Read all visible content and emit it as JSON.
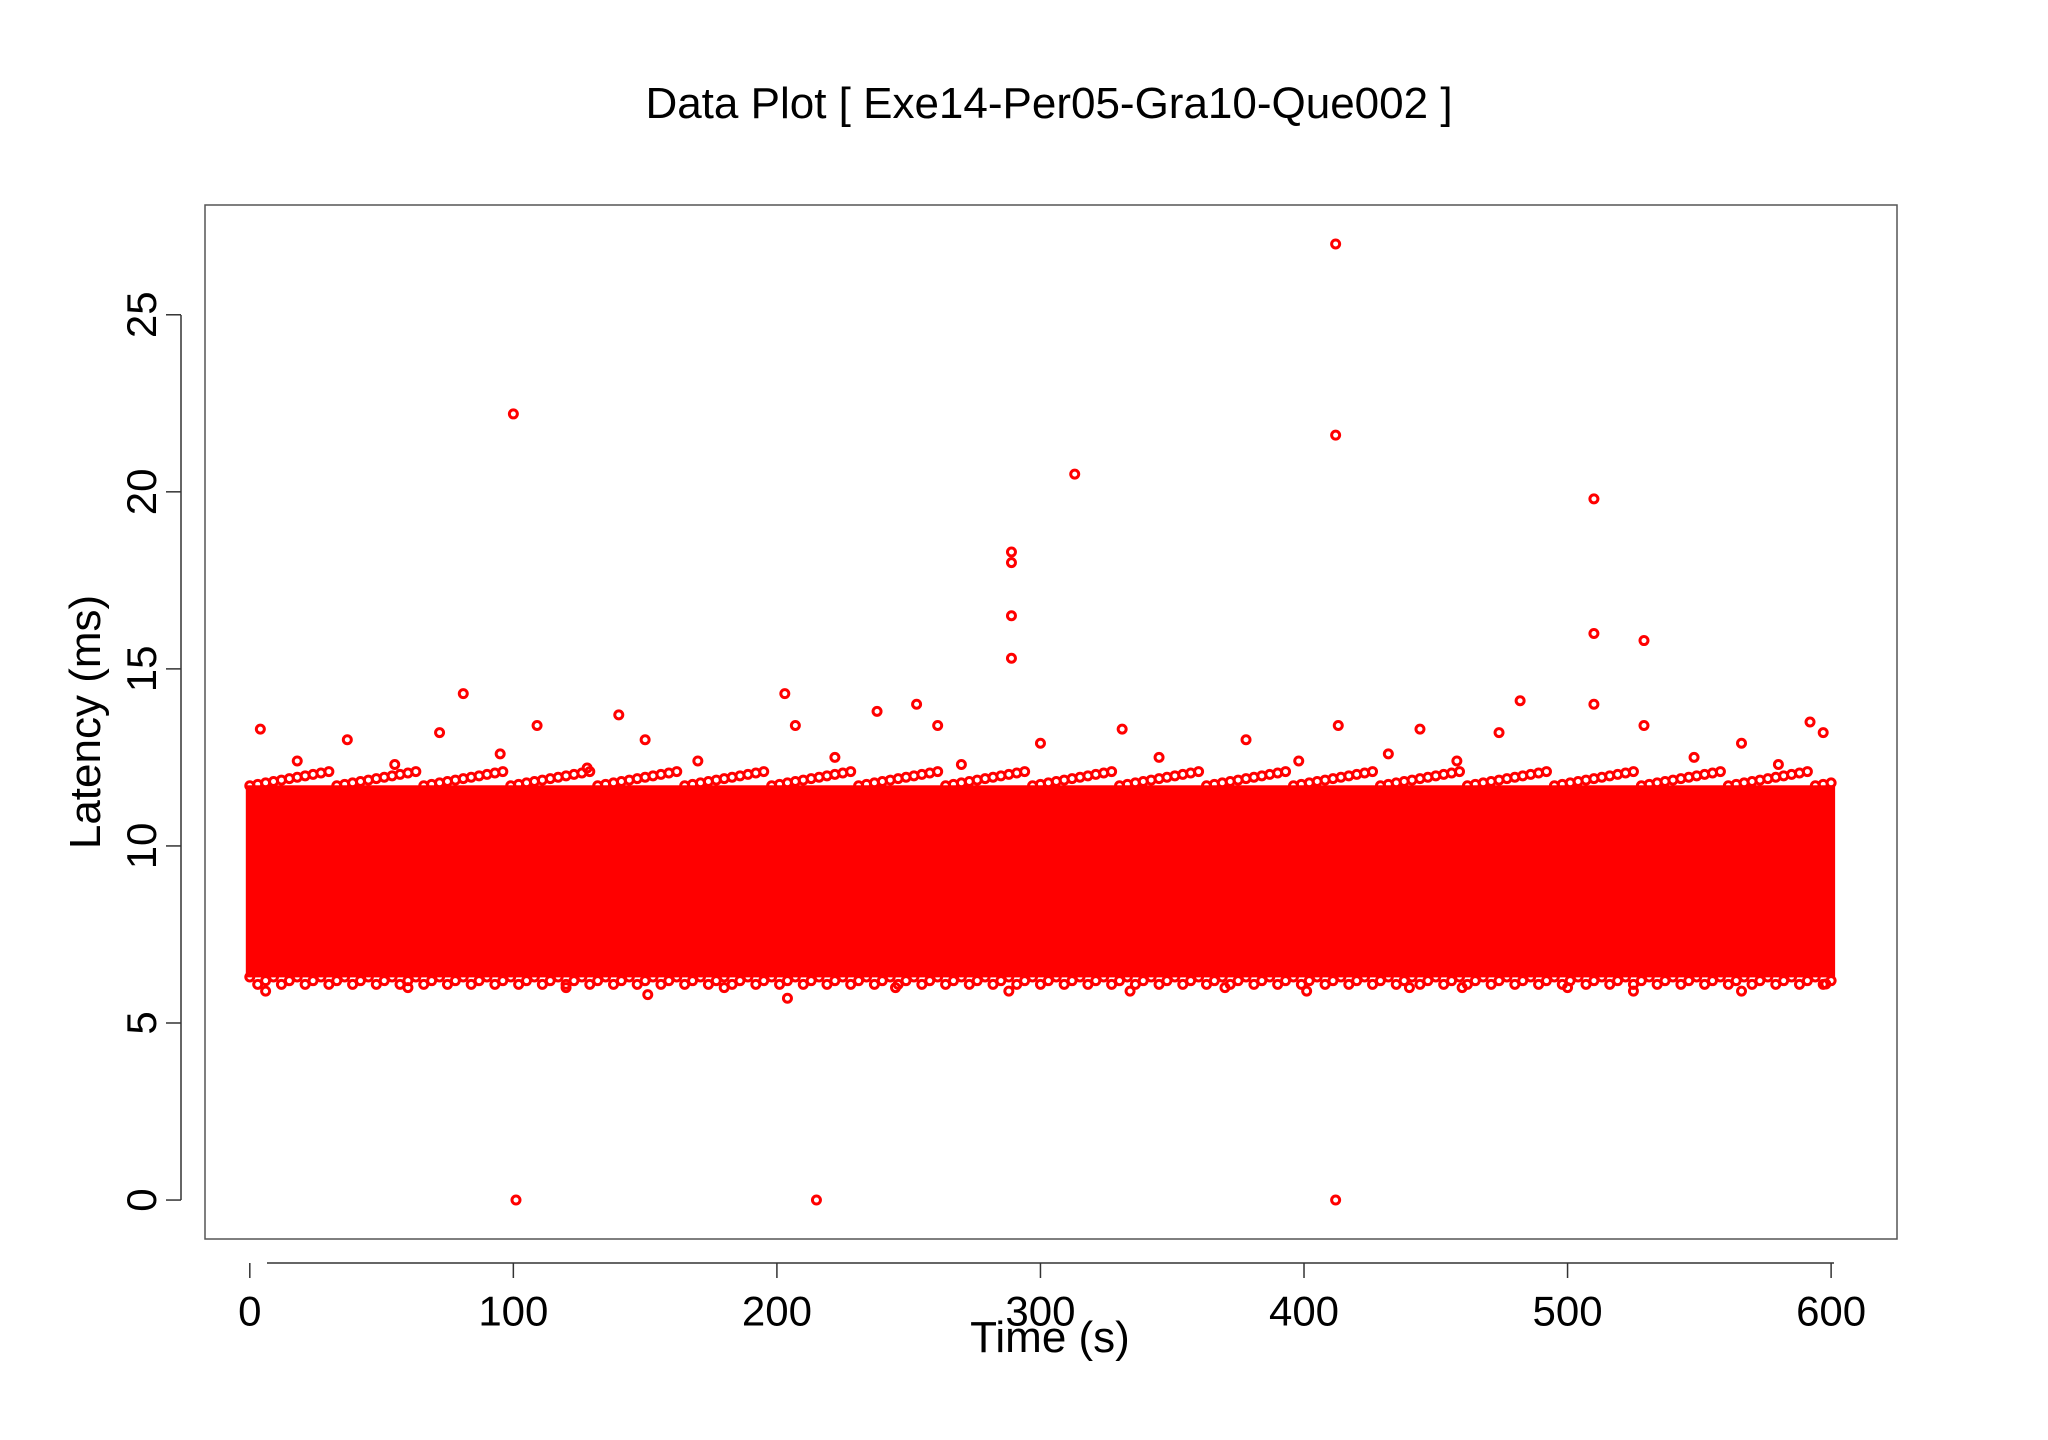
{
  "chart_data": {
    "type": "scatter",
    "title": "Data Plot [ Exe14-Per05-Gra10-Que002 ]",
    "xlabel": "Time (s)",
    "ylabel": "Latency (ms)",
    "xlim": [
      -17,
      625
    ],
    "ylim": [
      -1.1,
      28.1
    ],
    "xticks": [
      0,
      100,
      200,
      300,
      400,
      500,
      600
    ],
    "yticks": [
      0,
      5,
      10,
      15,
      20,
      25
    ],
    "grid": false,
    "legend": "none",
    "color": "#ff0000",
    "dense_band": {
      "x_range": [
        0,
        600
      ],
      "y_range": [
        6.4,
        11.6
      ]
    },
    "points": [
      {
        "x": 100,
        "y": 22.2
      },
      {
        "x": 412,
        "y": 27.0
      },
      {
        "x": 412,
        "y": 21.6
      },
      {
        "x": 313,
        "y": 20.5
      },
      {
        "x": 510,
        "y": 19.8
      },
      {
        "x": 289,
        "y": 18.3
      },
      {
        "x": 289,
        "y": 18.0
      },
      {
        "x": 289,
        "y": 16.5
      },
      {
        "x": 289,
        "y": 15.3
      },
      {
        "x": 510,
        "y": 16.0
      },
      {
        "x": 529,
        "y": 15.8
      },
      {
        "x": 81,
        "y": 14.3
      },
      {
        "x": 203,
        "y": 14.3
      },
      {
        "x": 140,
        "y": 13.7
      },
      {
        "x": 238,
        "y": 13.8
      },
      {
        "x": 253,
        "y": 14.0
      },
      {
        "x": 482,
        "y": 14.1
      },
      {
        "x": 510,
        "y": 14.0
      },
      {
        "x": 592,
        "y": 13.5
      },
      {
        "x": 4,
        "y": 13.3
      },
      {
        "x": 72,
        "y": 13.2
      },
      {
        "x": 109,
        "y": 13.4
      },
      {
        "x": 207,
        "y": 13.4
      },
      {
        "x": 261,
        "y": 13.4
      },
      {
        "x": 331,
        "y": 13.3
      },
      {
        "x": 413,
        "y": 13.4
      },
      {
        "x": 444,
        "y": 13.3
      },
      {
        "x": 529,
        "y": 13.4
      },
      {
        "x": 597,
        "y": 13.2
      },
      {
        "x": 37,
        "y": 13.0
      },
      {
        "x": 150,
        "y": 13.0
      },
      {
        "x": 300,
        "y": 12.9
      },
      {
        "x": 378,
        "y": 13.0
      },
      {
        "x": 474,
        "y": 13.2
      },
      {
        "x": 566,
        "y": 12.9
      },
      {
        "x": 18,
        "y": 12.4
      },
      {
        "x": 55,
        "y": 12.3
      },
      {
        "x": 95,
        "y": 12.6
      },
      {
        "x": 128,
        "y": 12.2
      },
      {
        "x": 170,
        "y": 12.4
      },
      {
        "x": 222,
        "y": 12.5
      },
      {
        "x": 270,
        "y": 12.3
      },
      {
        "x": 345,
        "y": 12.5
      },
      {
        "x": 398,
        "y": 12.4
      },
      {
        "x": 432,
        "y": 12.6
      },
      {
        "x": 458,
        "y": 12.4
      },
      {
        "x": 548,
        "y": 12.5
      },
      {
        "x": 580,
        "y": 12.3
      },
      {
        "x": 101,
        "y": 0
      },
      {
        "x": 215,
        "y": 0
      },
      {
        "x": 412,
        "y": 0
      },
      {
        "x": 204,
        "y": 5.7
      },
      {
        "x": 151,
        "y": 5.8
      },
      {
        "x": 6,
        "y": 5.9
      },
      {
        "x": 288,
        "y": 5.9
      },
      {
        "x": 334,
        "y": 5.9
      },
      {
        "x": 401,
        "y": 5.9
      },
      {
        "x": 460,
        "y": 6.0
      },
      {
        "x": 525,
        "y": 5.9
      },
      {
        "x": 566,
        "y": 5.9
      },
      {
        "x": 60,
        "y": 6.0
      },
      {
        "x": 120,
        "y": 6.0
      },
      {
        "x": 180,
        "y": 6.0
      },
      {
        "x": 245,
        "y": 6.0
      },
      {
        "x": 370,
        "y": 6.0
      },
      {
        "x": 440,
        "y": 6.0
      },
      {
        "x": 500,
        "y": 6.0
      },
      {
        "x": 598,
        "y": 6.1
      }
    ]
  }
}
